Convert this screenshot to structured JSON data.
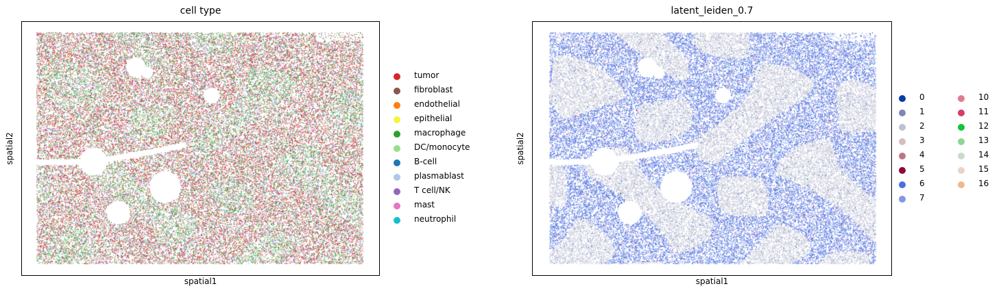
{
  "chart_data": [
    {
      "type": "scatter",
      "title": "cell type",
      "xlabel": "spatial1",
      "ylabel": "spatial2",
      "legend_position": "right",
      "series": [
        {
          "name": "tumor",
          "color": "#d62728",
          "share": 0.4
        },
        {
          "name": "fibroblast",
          "color": "#8c564b",
          "share": 0.02
        },
        {
          "name": "endothelial",
          "color": "#ff7f0e",
          "share": 0.01
        },
        {
          "name": "epithelial",
          "color": "#f5f53a",
          "share": 0.01
        },
        {
          "name": "macrophage",
          "color": "#2ca02c",
          "share": 0.2
        },
        {
          "name": "DC/monocyte",
          "color": "#98df8a",
          "share": 0.06
        },
        {
          "name": "B-cell",
          "color": "#1f77b4",
          "share": 0.01
        },
        {
          "name": "plasmablast",
          "color": "#aec7e8",
          "share": 0.08
        },
        {
          "name": "T cell/NK",
          "color": "#9467bd",
          "share": 0.19
        },
        {
          "name": "mast",
          "color": "#e377c2",
          "share": 0.005
        },
        {
          "name": "neutrophil",
          "color": "#17becf",
          "share": 0.015
        }
      ]
    },
    {
      "type": "scatter",
      "title": "latent_leiden_0.7",
      "xlabel": "spatial1",
      "ylabel": "spatial2",
      "legend_position": "right",
      "series": [
        {
          "name": "0",
          "color": "#023fa5",
          "share": 0.01
        },
        {
          "name": "1",
          "color": "#7d87b9",
          "share": 0.01
        },
        {
          "name": "2",
          "color": "#bec1d4",
          "share": 0.44
        },
        {
          "name": "3",
          "color": "#d6bcc0",
          "share": 0.005
        },
        {
          "name": "4",
          "color": "#bb7784",
          "share": 0.005
        },
        {
          "name": "5",
          "color": "#8e063b",
          "share": 0.003
        },
        {
          "name": "6",
          "color": "#4a6fe3",
          "share": 0.48
        },
        {
          "name": "7",
          "color": "#8595e1",
          "share": 0.02
        },
        {
          "name": "10",
          "color": "#e07b91",
          "share": 0.01
        },
        {
          "name": "11",
          "color": "#d33f6a",
          "share": 0.005
        },
        {
          "name": "12",
          "color": "#11c638",
          "share": 0.002
        },
        {
          "name": "13",
          "color": "#8dd593",
          "share": 0.002
        },
        {
          "name": "14",
          "color": "#c6dec7",
          "share": 0.002
        },
        {
          "name": "15",
          "color": "#ead3c6",
          "share": 0.002
        },
        {
          "name": "16",
          "color": "#f0b98d",
          "share": 0.002
        }
      ]
    }
  ]
}
